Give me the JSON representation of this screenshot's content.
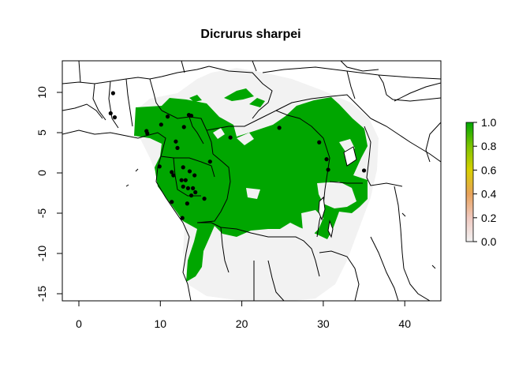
{
  "title": "Dicrurus sharpei",
  "x_axis": {
    "ticks": [
      "0",
      "10",
      "20",
      "30",
      "40"
    ],
    "values": [
      0,
      10,
      20,
      30,
      40
    ]
  },
  "y_axis": {
    "ticks": [
      "-15",
      "-10",
      "-5",
      "0",
      "5",
      "10"
    ],
    "values": [
      -15,
      -10,
      -5,
      0,
      5,
      10
    ]
  },
  "legend": {
    "ticks": [
      "0.0",
      "0.2",
      "0.4",
      "0.6",
      "0.8",
      "1.0"
    ],
    "values": [
      0.0,
      0.2,
      0.4,
      0.6,
      0.8,
      1.0
    ],
    "colors": [
      "#f2f2f2",
      "#f0c9c0",
      "#e8a25a",
      "#d8d000",
      "#7dc400",
      "#00a600"
    ]
  },
  "colors": {
    "suitable": "#00a600",
    "background_range": "#f2f2f2",
    "borders": "#000000",
    "points": "#000000"
  },
  "occurrences": [
    [
      4.2,
      9.9
    ],
    [
      3.9,
      7.4
    ],
    [
      4.4,
      6.9
    ],
    [
      8.3,
      5.2
    ],
    [
      8.4,
      4.9
    ],
    [
      10.1,
      6.0
    ],
    [
      10.9,
      7.0
    ],
    [
      12.9,
      5.7
    ],
    [
      13.5,
      7.2
    ],
    [
      13.8,
      7.1
    ],
    [
      11.9,
      3.9
    ],
    [
      12.1,
      3.1
    ],
    [
      9.9,
      0.8
    ],
    [
      11.4,
      0.1
    ],
    [
      12.8,
      0.7
    ],
    [
      13.6,
      0.2
    ],
    [
      14.2,
      -0.3
    ],
    [
      11.6,
      -0.3
    ],
    [
      12.6,
      -0.9
    ],
    [
      13.1,
      -0.9
    ],
    [
      12.8,
      -1.7
    ],
    [
      13.4,
      -1.9
    ],
    [
      14.0,
      -1.9
    ],
    [
      14.3,
      -2.4
    ],
    [
      13.8,
      -2.8
    ],
    [
      15.4,
      -3.2
    ],
    [
      11.4,
      -3.6
    ],
    [
      13.3,
      -3.8
    ],
    [
      12.7,
      -5.6
    ],
    [
      16.1,
      1.4
    ],
    [
      18.6,
      4.4
    ],
    [
      24.6,
      5.6
    ],
    [
      29.5,
      3.8
    ],
    [
      30.4,
      1.7
    ],
    [
      30.6,
      0.4
    ],
    [
      35.0,
      0.3
    ]
  ]
}
